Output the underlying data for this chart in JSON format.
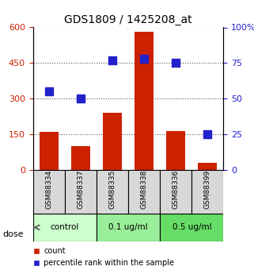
{
  "title": "GDS1809 / 1425208_at",
  "samples": [
    "GSM88334",
    "GSM88337",
    "GSM88335",
    "GSM88338",
    "GSM88336",
    "GSM88399"
  ],
  "counts": [
    160,
    100,
    240,
    580,
    165,
    30
  ],
  "percentiles": [
    55,
    50,
    77,
    78,
    75,
    25
  ],
  "bar_color": "#cc2200",
  "dot_color": "#2222cc",
  "left_ylim": [
    0,
    600
  ],
  "right_ylim": [
    0,
    100
  ],
  "left_yticks": [
    0,
    150,
    300,
    450,
    600
  ],
  "right_yticks": [
    0,
    25,
    50,
    75,
    100
  ],
  "right_yticklabels": [
    "0",
    "25",
    "50",
    "75",
    "100%"
  ],
  "groups": [
    {
      "label": "control",
      "indices": [
        0,
        1
      ],
      "color": "#ccffcc"
    },
    {
      "label": "0.1 ug/ml",
      "indices": [
        2,
        3
      ],
      "color": "#99ee99"
    },
    {
      "label": "0.5 ug/ml",
      "indices": [
        4,
        5
      ],
      "color": "#66dd66"
    }
  ],
  "dose_label": "dose",
  "legend_count": "count",
  "legend_percentile": "percentile rank within the sample",
  "xlabel_color": "#888888",
  "left_tick_color": "#cc2200",
  "right_tick_color": "#2222cc",
  "dotted_line_color": "#555555",
  "bar_width": 0.6,
  "dot_size": 50
}
